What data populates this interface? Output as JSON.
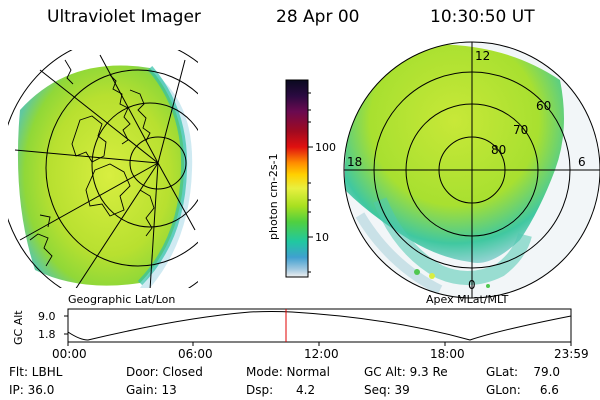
{
  "header": {
    "instrument": "Ultraviolet Imager",
    "date": "28 Apr 00",
    "time": "10:30:50 UT"
  },
  "geo_panel": {
    "label": "Geographic Lat/Lon"
  },
  "polar_panel": {
    "label": "Apex MLat/MLT",
    "lat_labels": [
      "60",
      "70",
      "80"
    ],
    "mlt_labels": [
      "12",
      "18",
      "6",
      "0"
    ]
  },
  "colorbar": {
    "unit_label": "photon cm-2s-1",
    "tick_labels": [
      "100",
      "10"
    ],
    "colors": [
      "#0a0a20",
      "#2a0a40",
      "#6a0a50",
      "#a00a20",
      "#e01010",
      "#ff8c00",
      "#ffd000",
      "#e8f040",
      "#a8e020",
      "#50d040",
      "#20c8a0",
      "#40a0d0",
      "#a0c8e0",
      "#f0f0f0"
    ]
  },
  "altitude_plot": {
    "ylabel": "GC Alt",
    "y_ticks": [
      "9.0",
      "1.8"
    ],
    "x_ticks": [
      "00:00",
      "06:00",
      "12:00",
      "18:00",
      "23:59"
    ],
    "current_time_marker": "10:30"
  },
  "info": {
    "flt": "Flt: LBHL",
    "ip": "IP: 36.0",
    "door": "Door: Closed",
    "gain": "Gain: 13",
    "mode": "Mode: Normal",
    "dsp": "Dsp:      4.2",
    "gcalt": "GC Alt: 9.3 Re",
    "seq": "Seq: 39",
    "glat": "GLat:    79.0",
    "glon": "GLon:     6.6"
  }
}
